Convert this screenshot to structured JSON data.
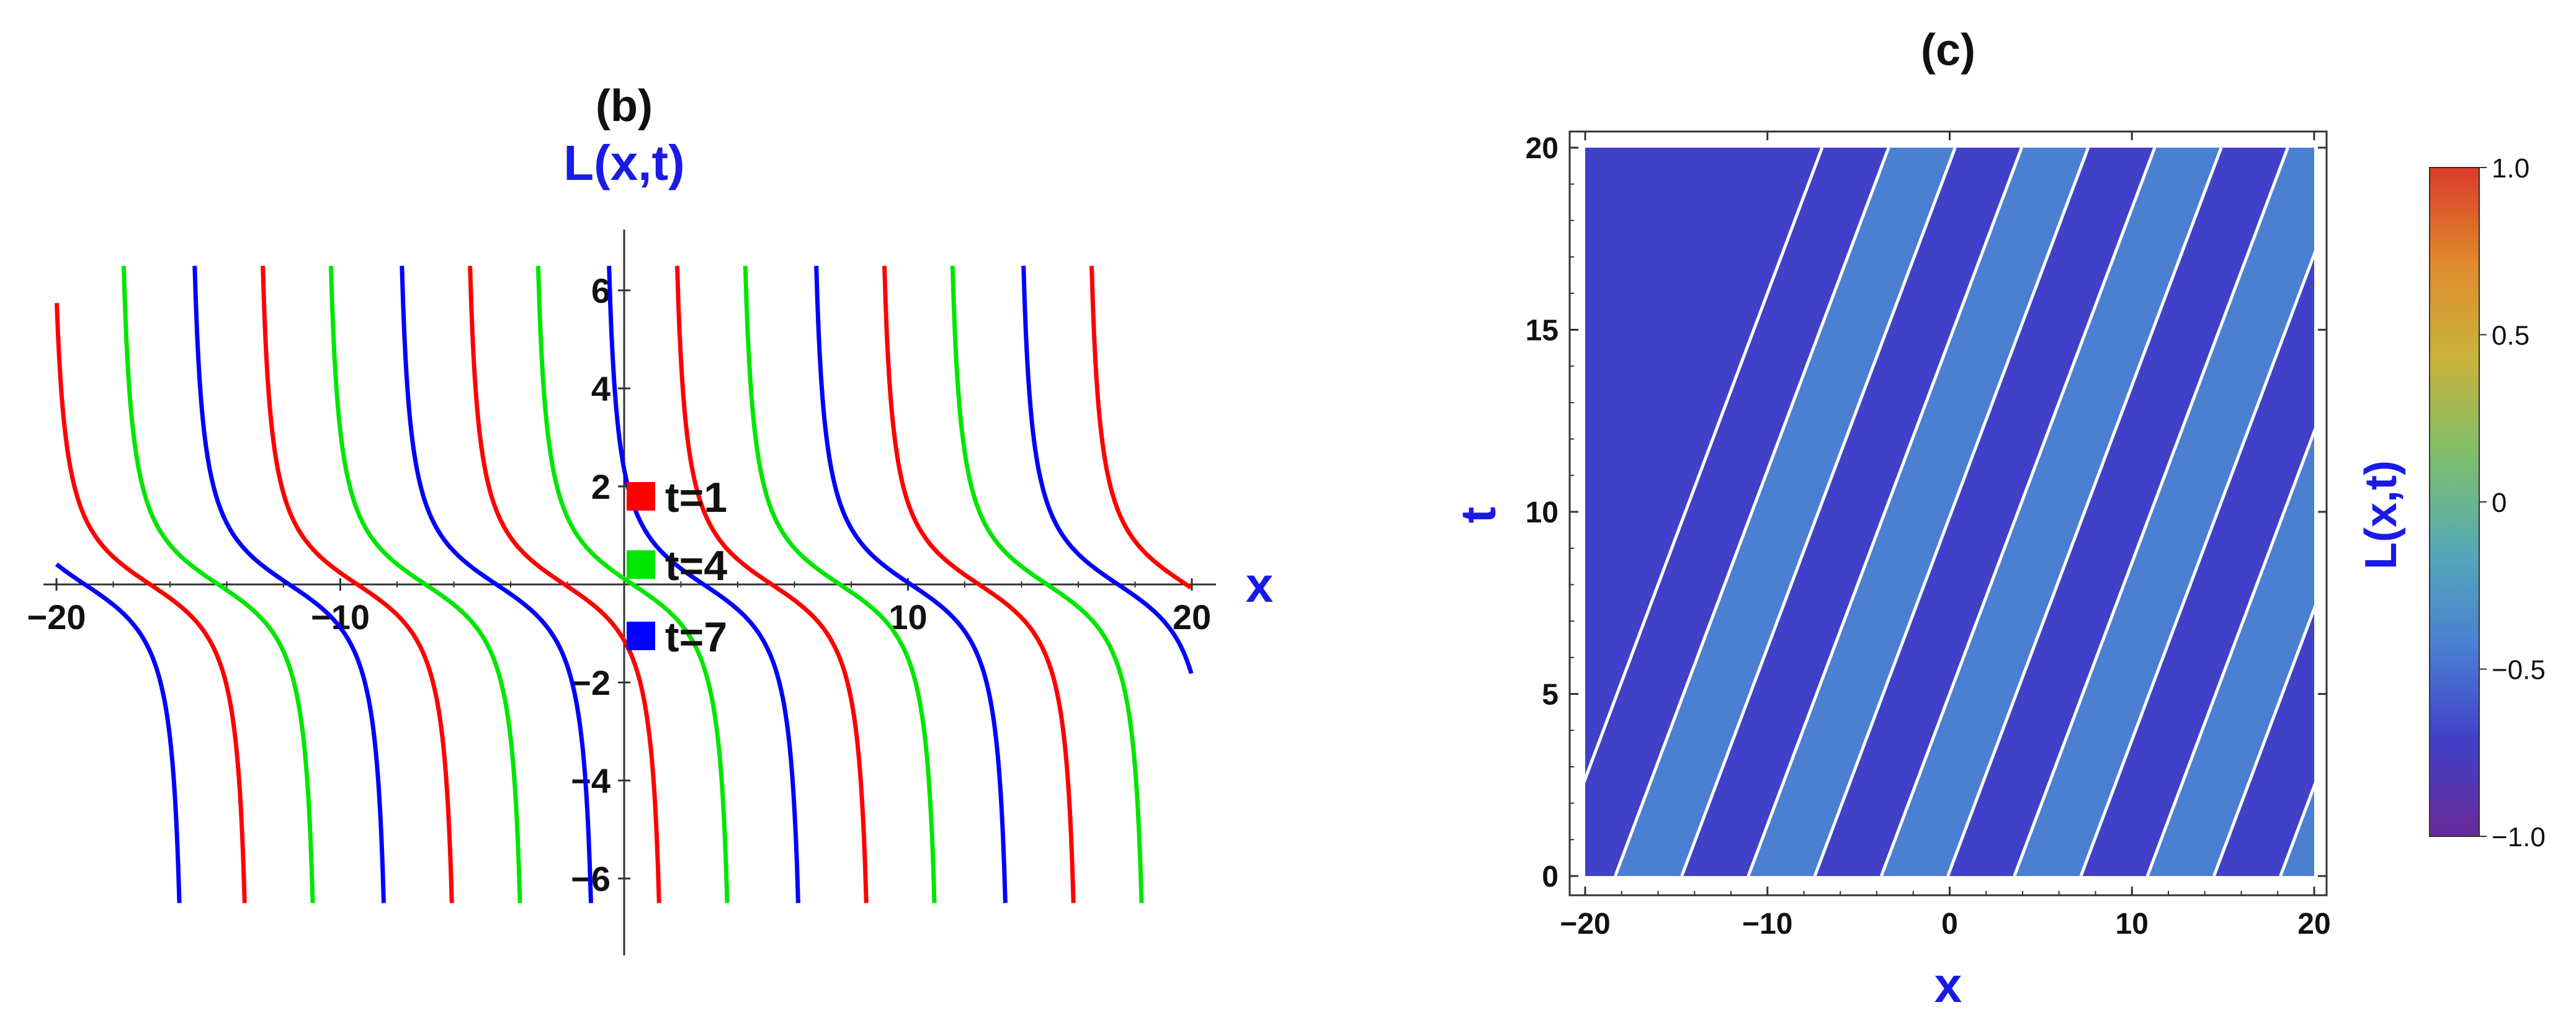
{
  "chart_data": [
    {
      "panel": "(b)",
      "type": "line",
      "title": "(b)",
      "ylabel": "L(x,t)",
      "xlabel": "x",
      "xlim": [
        -20,
        20
      ],
      "ylim": [
        -6.5,
        6.5
      ],
      "x_ticks": [
        "−20",
        "−10",
        "10",
        "20"
      ],
      "y_ticks": [
        "−6",
        "−4",
        "−2",
        "2",
        "4",
        "6"
      ],
      "series": [
        {
          "name": "t=1",
          "color": "#ff0000",
          "zero_crossings": [
            -16.7,
            -9.4,
            -2.1,
            5.2,
            12.5,
            19.8
          ]
        },
        {
          "name": "t=4",
          "color": "#00e600",
          "zero_crossings": [
            -14.3,
            -7.0,
            0.3,
            7.6,
            14.9
          ]
        },
        {
          "name": "t=7",
          "color": "#0000ff",
          "zero_crossings": [
            -19.0,
            -11.8,
            -4.5,
            2.8,
            10.1,
            17.4
          ]
        }
      ],
      "period": 7.3,
      "legend": [
        "t=1",
        "t=4",
        "t=7"
      ],
      "legend_placement": "center"
    },
    {
      "panel": "(c)",
      "type": "heatmap",
      "title": "(c)",
      "xlabel": "x",
      "ylabel": "t",
      "colorbar_label": "L(x,t)",
      "xlim": [
        -20,
        20
      ],
      "ylim": [
        0,
        20
      ],
      "x_ticks": [
        "−20",
        "−10",
        "0",
        "10",
        "20"
      ],
      "y_ticks": [
        "0",
        "5",
        "10",
        "15",
        "20"
      ],
      "colorbar_range": [
        -1,
        1
      ],
      "colorbar_ticks": [
        "1.0",
        "0.5",
        "0",
        "−0.5",
        "−1.0"
      ],
      "stripe_colors": [
        "#4040c8",
        "#4a7fd2"
      ],
      "stripe_divider_color": "#ffffff",
      "stripe_period_x": 7.3,
      "stripe_slope_x_per_t": 0.75,
      "colormap": [
        "#6a2a9a",
        "#4040c8",
        "#4a7fd2",
        "#55a9b6",
        "#7fbf6a",
        "#c9b43c",
        "#e08a2c",
        "#d93a2a"
      ]
    }
  ]
}
